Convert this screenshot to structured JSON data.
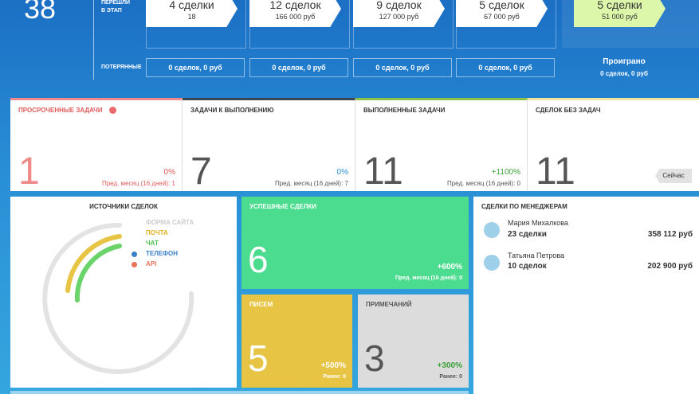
{
  "pipeline": {
    "total": "38",
    "moved_label": [
      "ПЕРЕШЛИ",
      "В ЭТАП"
    ],
    "lost_label": "ПОТЕРЯННЫЕ",
    "stages": [
      {
        "deals": "4 сделки",
        "amount": "18",
        "lost": "0 сделок, 0 руб"
      },
      {
        "deals": "12 сделок",
        "amount": "166 000 руб",
        "lost": "0 сделок, 0 руб"
      },
      {
        "deals": "9 сделок",
        "amount": "127 000 руб",
        "lost": "0 сделок, 0 руб"
      },
      {
        "deals": "5 сделок",
        "amount": "67 000 руб",
        "lost": "0 сделок, 0 руб"
      }
    ],
    "won": {
      "deals": "5 сделки",
      "amount": "51 000 руб"
    },
    "lost_total": {
      "title": "Проиграно",
      "value": "0 сделок, 0 руб"
    }
  },
  "tasks": [
    {
      "title": "ПРОСРОЧЕННЫЕ ЗАДАЧИ",
      "value": "1",
      "change": "0%",
      "prev": "Пред. месяц (16 дней): 1"
    },
    {
      "title": "ЗАДАЧИ К ВЫПОЛНЕНИЮ",
      "value": "7",
      "change": "0%",
      "prev": "Пред. месяц (16 дней): 7"
    },
    {
      "title": "ВЫПОЛНЕННЫЕ ЗАДАЧИ",
      "value": "11",
      "change": "+1100%",
      "prev": "Пред. месяц (16 дней): 0"
    },
    {
      "title": "СДЕЛОК БЕЗ ЗАДАЧ",
      "value": "11",
      "tag": "Сейчас"
    }
  ],
  "sources": {
    "title": "ИСТОЧНИКИ СДЕЛОК",
    "items": [
      "ФОРМА САЙТА",
      "ПОЧТА",
      "ЧАТ",
      "ТЕЛЕФОН",
      "API"
    ]
  },
  "successful": {
    "title": "УСПЕШНЫЕ СДЕЛКИ",
    "value": "6",
    "change": "+600%",
    "prev": "Пред. месяц (16 дней): 0"
  },
  "letters": {
    "title": "ПИСЕМ",
    "value": "5",
    "change": "+500%",
    "prev": "Ранее: 0"
  },
  "notes": {
    "title": "ПРИМЕЧАНИЙ",
    "value": "3",
    "change": "+300%",
    "prev": "Ранее: 0"
  },
  "managers": {
    "title": "СДЕЛКИ ПО МЕНЕДЖЕРАМ",
    "rows": [
      {
        "name": "Мария Михалкова",
        "deals": "23 сделки",
        "amount": "358 112 руб"
      },
      {
        "name": "Татьяна Петрова",
        "deals": "10 сделок",
        "amount": "202 900 руб"
      }
    ]
  }
}
